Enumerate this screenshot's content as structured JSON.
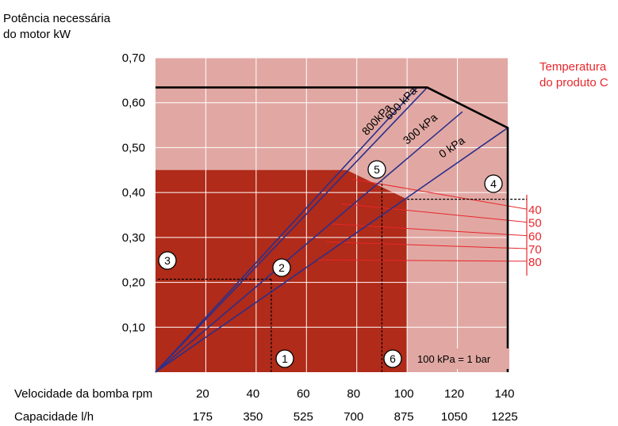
{
  "chart_data": {
    "type": "line",
    "ylabel": [
      "Potência necessária",
      "do motor kW"
    ],
    "xlabel": "Velocidade da bomba rpm",
    "x2label": "Capacidade l/h",
    "ylim": [
      0,
      0.7
    ],
    "xlim": [
      0,
      140
    ],
    "yticks": [
      "0,10",
      "0,20",
      "0,30",
      "0,40",
      "0,50",
      "0,60",
      "0,70"
    ],
    "ytick_values": [
      0.1,
      0.2,
      0.3,
      0.4,
      0.5,
      0.6,
      0.7
    ],
    "xticks": [
      "20",
      "40",
      "60",
      "80",
      "100",
      "120",
      "140"
    ],
    "xtick_values": [
      20,
      40,
      60,
      80,
      100,
      120,
      140
    ],
    "capacity_ticks": [
      "175",
      "350",
      "525",
      "700",
      "875",
      "1050",
      "1225"
    ],
    "grid": true,
    "legend": "Temperatura do produto C",
    "legend_lines": [
      "Temperatura",
      "do produto C"
    ],
    "temperatures": [
      "40",
      "50",
      "60",
      "70",
      "80"
    ],
    "note": "100 kPa = 1 bar",
    "series": [
      {
        "name": "800kPa",
        "x": [
          0,
          104
        ],
        "y": [
          0,
          0.634
        ]
      },
      {
        "name": "600 kPa",
        "x": [
          0,
          108
        ],
        "y": [
          0,
          0.634
        ]
      },
      {
        "name": "300 kPa",
        "x": [
          0,
          122
        ],
        "y": [
          0,
          0.58
        ]
      },
      {
        "name": "0 kPa",
        "x": [
          0,
          140
        ],
        "y": [
          0,
          0.544
        ]
      }
    ],
    "max_power_curve": {
      "x": [
        0,
        108,
        140,
        140
      ],
      "y": [
        0.634,
        0.634,
        0.544,
        0
      ]
    },
    "regions": {
      "light": {
        "color": "#e1a8a3",
        "x": [
          0,
          140
        ],
        "y": [
          0,
          0.7
        ]
      },
      "dark": {
        "color": "#b02b19",
        "x": [
          0,
          100
        ],
        "y": [
          0,
          0.45
        ]
      }
    },
    "markers": [
      "1",
      "2",
      "3",
      "4",
      "5",
      "6"
    ],
    "example_point": {
      "x": 46,
      "y": 0.207
    },
    "example_point_2": {
      "x": 90,
      "y": 0.4
    },
    "colors": {
      "series": "#2b2f8c",
      "temperature": "#e8262b",
      "boundary": "#000000"
    }
  }
}
